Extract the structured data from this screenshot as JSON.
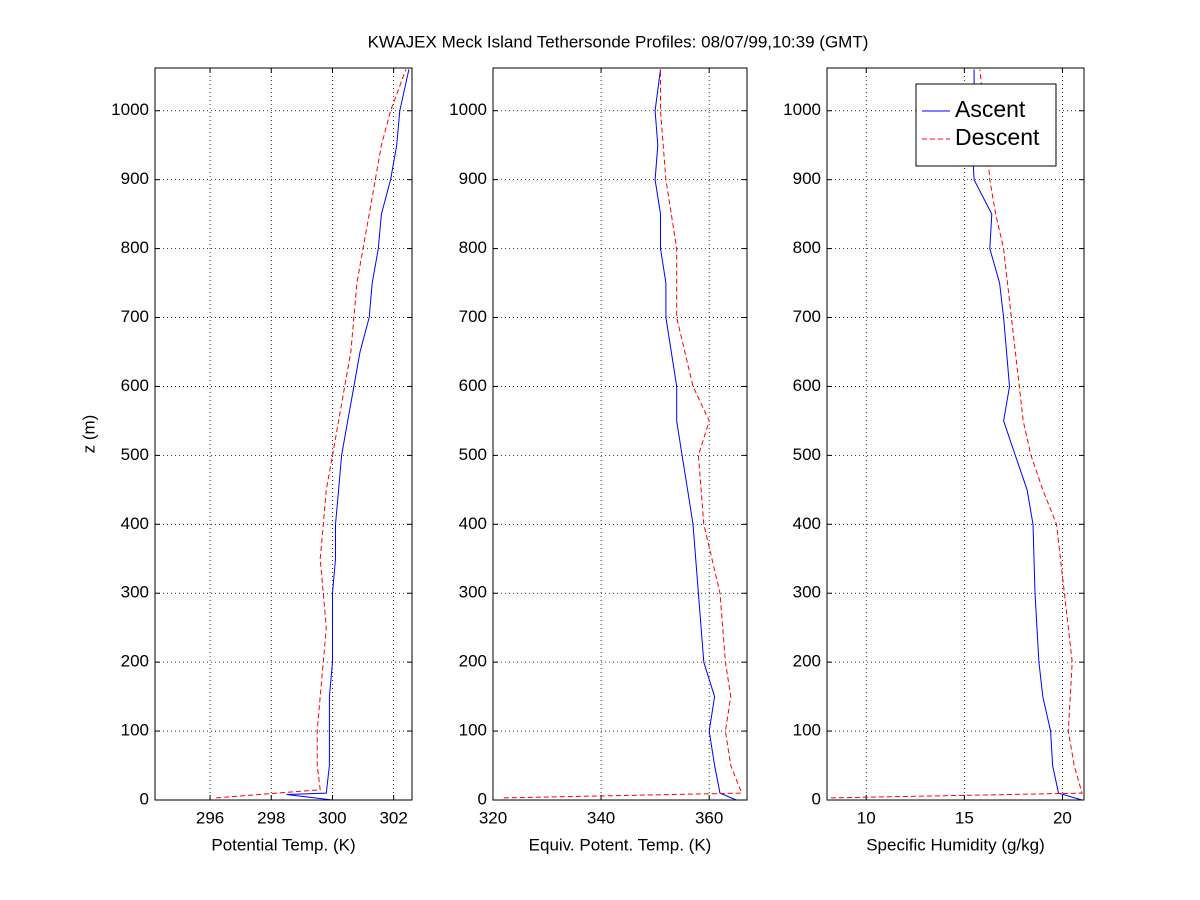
{
  "title": "KWAJEX Meck Island Tethersonde Profiles: 08/07/99,10:39 (GMT)",
  "chart_data": [
    {
      "type": "line",
      "xlabel": "Potential Temp. (K)",
      "ylabel": "z (m)",
      "xlim": [
        294.2,
        302.6
      ],
      "xticks": [
        296,
        298,
        300,
        302
      ],
      "ylim": [
        0,
        1062
      ],
      "yticks": [
        0,
        100,
        200,
        300,
        400,
        500,
        600,
        700,
        800,
        900,
        1000
      ],
      "grid": true,
      "series": [
        {
          "name": "Ascent",
          "color": "#0000ff",
          "style": "solid",
          "y": [
            0,
            8,
            10,
            50,
            100,
            150,
            200,
            250,
            300,
            350,
            400,
            450,
            500,
            550,
            600,
            650,
            700,
            750,
            800,
            850,
            900,
            950,
            1000,
            1060
          ],
          "values": [
            300,
            298.5,
            299.8,
            299.9,
            299.9,
            299.9,
            300.0,
            300.0,
            300.0,
            300.1,
            300.1,
            300.2,
            300.3,
            300.5,
            300.7,
            300.9,
            301.2,
            301.3,
            301.5,
            301.6,
            301.9,
            302.1,
            302.2,
            302.5
          ]
        },
        {
          "name": "Descent",
          "color": "#ff0000",
          "style": "dashed",
          "y": [
            3,
            15,
            50,
            100,
            150,
            200,
            250,
            300,
            350,
            400,
            450,
            500,
            550,
            600,
            650,
            700,
            750,
            800,
            850,
            900,
            950,
            1000,
            1060
          ],
          "values": [
            296.2,
            299.6,
            299.5,
            299.5,
            299.6,
            299.7,
            299.8,
            299.7,
            299.6,
            299.7,
            299.8,
            300.0,
            300.2,
            300.4,
            300.6,
            300.7,
            300.8,
            301.0,
            301.2,
            301.4,
            301.6,
            301.9,
            302.4
          ]
        }
      ]
    },
    {
      "type": "line",
      "xlabel": "Equiv. Potent. Temp. (K)",
      "xlim": [
        320,
        367
      ],
      "xticks": [
        320,
        340,
        360
      ],
      "ylim": [
        0,
        1062
      ],
      "yticks": [
        0,
        100,
        200,
        300,
        400,
        500,
        600,
        700,
        800,
        900,
        1000
      ],
      "grid": true,
      "series": [
        {
          "name": "Ascent",
          "color": "#0000ff",
          "style": "solid",
          "y": [
            0,
            10,
            50,
            100,
            150,
            200,
            300,
            400,
            450,
            500,
            550,
            600,
            650,
            700,
            750,
            800,
            850,
            900,
            950,
            1000,
            1060
          ],
          "values": [
            365,
            362,
            361,
            360,
            361,
            359,
            358,
            357,
            356,
            355,
            354,
            354,
            353,
            352,
            352,
            351,
            351,
            350,
            350.5,
            350,
            351
          ]
        },
        {
          "name": "Descent",
          "color": "#ff0000",
          "style": "dashed",
          "y": [
            3,
            10,
            50,
            100,
            150,
            200,
            300,
            400,
            500,
            550,
            600,
            700,
            800,
            850,
            900,
            1000,
            1060
          ],
          "values": [
            322,
            366,
            364,
            363,
            364,
            363,
            362,
            359,
            358,
            360,
            357,
            354,
            354,
            353,
            352,
            351,
            351
          ]
        }
      ]
    },
    {
      "type": "line",
      "xlabel": "Specific Humidity (g/kg)",
      "xlim": [
        8,
        21.1
      ],
      "xticks": [
        10,
        15,
        20
      ],
      "ylim": [
        0,
        1062
      ],
      "yticks": [
        0,
        100,
        200,
        300,
        400,
        500,
        600,
        700,
        800,
        900,
        1000
      ],
      "grid": true,
      "legend": "upper right",
      "series": [
        {
          "name": "Ascent",
          "color": "#0000ff",
          "style": "solid",
          "y": [
            0,
            10,
            50,
            100,
            150,
            200,
            300,
            400,
            450,
            500,
            550,
            600,
            700,
            750,
            800,
            850,
            900,
            950,
            1000,
            1060
          ],
          "values": [
            21,
            19.8,
            19.5,
            19.4,
            19.0,
            18.8,
            18.6,
            18.5,
            18.2,
            17.6,
            17.0,
            17.3,
            17.0,
            16.8,
            16.3,
            16.4,
            15.5,
            15.4,
            15.5,
            15.5
          ]
        },
        {
          "name": "Descent",
          "color": "#ff0000",
          "style": "dashed",
          "y": [
            3,
            10,
            50,
            100,
            200,
            300,
            400,
            450,
            500,
            550,
            600,
            700,
            800,
            850,
            900,
            1000,
            1060
          ],
          "values": [
            8.2,
            21,
            20.6,
            20.3,
            20.5,
            20.1,
            19.7,
            19.0,
            18.4,
            18.0,
            17.8,
            17.4,
            17.0,
            16.6,
            16.3,
            16.0,
            15.8
          ]
        }
      ]
    }
  ]
}
